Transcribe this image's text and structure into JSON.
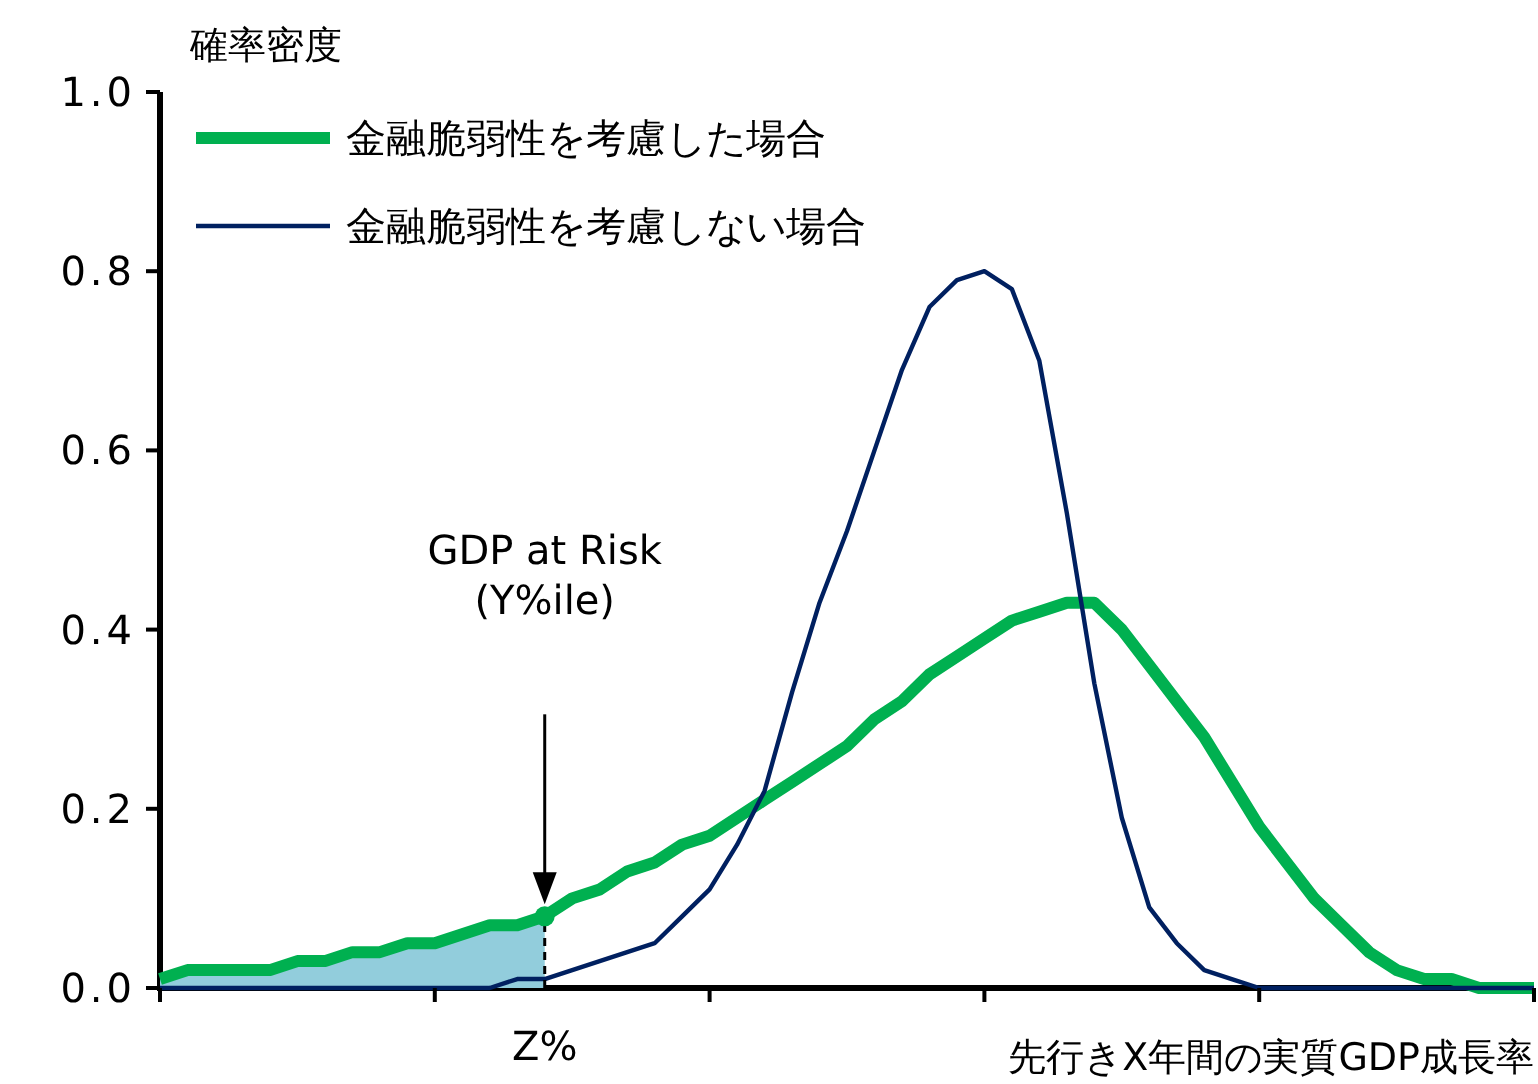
{
  "chart_data": {
    "type": "line",
    "ylabel": "確率密度",
    "xlabel": "先行きX年間の実質GDP成長率",
    "categories": [
      null,
      null,
      null,
      null,
      null,
      null,
      null,
      null,
      null,
      null,
      null,
      null,
      null,
      null,
      "Z%",
      null,
      null,
      null,
      null,
      null,
      null,
      null,
      null,
      null,
      null,
      null,
      null,
      null,
      null,
      null,
      null,
      null,
      null,
      null,
      null,
      null,
      null,
      null,
      null,
      null,
      null,
      null,
      null,
      null,
      null,
      null,
      null,
      null,
      null,
      null,
      null
    ],
    "ylim": [
      0,
      1
    ],
    "yticks": [
      {
        "value": 0,
        "label": "0.0"
      },
      {
        "value": 0.2,
        "label": "0.2"
      },
      {
        "value": 0.4,
        "label": "0.4"
      },
      {
        "value": 0.6,
        "label": "0.6"
      },
      {
        "value": 0.8,
        "label": "0.8"
      },
      {
        "value": 1,
        "label": "1.0"
      }
    ],
    "legend": "top left",
    "series": [
      {
        "type": "area",
        "color": "#92cddc",
        "values": [
          0.01,
          0.02,
          0.02,
          0.02,
          0.02,
          0.03,
          0.03,
          0.04,
          0.04,
          0.05,
          0.05,
          0.06,
          0.07,
          0.07,
          0.08,
          null,
          null,
          null,
          null,
          null,
          null,
          null,
          null,
          null,
          null,
          null,
          null,
          null,
          null,
          null,
          null,
          null,
          null,
          null,
          null,
          null,
          null,
          null,
          null,
          null,
          null,
          null,
          null,
          null,
          null,
          null,
          null,
          null,
          null,
          null,
          null
        ]
      },
      {
        "name": "金融脆弱性を考慮した場合",
        "color": "#00b050",
        "values": [
          0.01,
          0.02,
          0.02,
          0.02,
          0.02,
          0.03,
          0.03,
          0.04,
          0.04,
          0.05,
          0.05,
          0.06,
          0.07,
          0.07,
          0.08,
          0.1,
          0.11,
          0.13,
          0.14,
          0.16,
          0.17,
          0.19,
          0.21,
          0.23,
          0.25,
          0.27,
          0.3,
          0.32,
          0.35,
          0.37,
          0.39,
          0.41,
          0.42,
          0.43,
          0.43,
          0.4,
          0.36,
          0.32,
          0.28,
          0.23,
          0.18,
          0.14,
          0.1,
          0.07,
          0.04,
          0.02,
          0.01,
          0.01,
          0,
          0,
          0
        ]
      },
      {
        "name": "金融脆弱性を考慮しない場合",
        "color": "#002060",
        "values": [
          0,
          0,
          0,
          0,
          0,
          0,
          0,
          0,
          0,
          0,
          0,
          0,
          0,
          0.01,
          0.01,
          0.02,
          0.03,
          0.04,
          0.05,
          0.08,
          0.11,
          0.16,
          0.22,
          0.33,
          0.43,
          0.51,
          0.6,
          0.69,
          0.76,
          0.79,
          0.8,
          0.78,
          0.7,
          0.53,
          0.34,
          0.19,
          0.09,
          0.05,
          0.02,
          0.01,
          0,
          0,
          0,
          0,
          0,
          0,
          0,
          0,
          0,
          0,
          0
        ]
      },
      {
        "type": "scatter",
        "color": "#00b050",
        "marker": "circle",
        "line_style": "dashed",
        "values": [
          null,
          null,
          null,
          null,
          null,
          null,
          null,
          null,
          null,
          null,
          null,
          null,
          null,
          null,
          0.08,
          null,
          null,
          null,
          null,
          null,
          null,
          null,
          null,
          null,
          null,
          null,
          null,
          null,
          null,
          null,
          null,
          null,
          null,
          null,
          null,
          null,
          null,
          null,
          null,
          null,
          null,
          null,
          null,
          null,
          null,
          null,
          null,
          null,
          null,
          null,
          null
        ]
      }
    ],
    "annotations": [
      "GDP at Risk\n(Y%ile)"
    ]
  }
}
